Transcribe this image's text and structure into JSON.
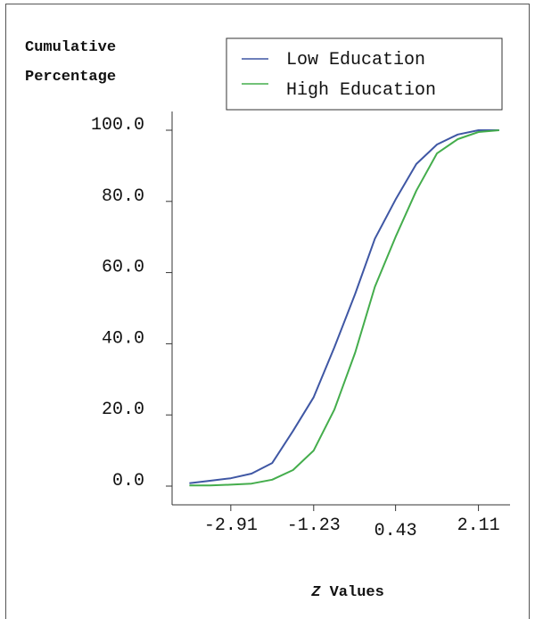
{
  "chart_data": {
    "type": "line",
    "ylabel_lines": [
      "Cumulative",
      "Percentage"
    ],
    "xlabel_prefix": "Z",
    "xlabel_suffix": " Values",
    "y_ticks": [
      "100.0",
      "80.0",
      "60.0",
      "40.0",
      "20.0",
      "0.0"
    ],
    "x_ticks": [
      "-2.91",
      "-1.23",
      "0.43",
      "2.11"
    ],
    "x_tick_values": [
      -2.91,
      -1.23,
      0.43,
      2.11
    ],
    "y_tick_values": [
      100,
      80,
      60,
      40,
      20,
      0
    ],
    "xlim": [
      -4.1,
      2.75
    ],
    "ylim": [
      0,
      100
    ],
    "legend_position": "top-right",
    "series": [
      {
        "name": "Low Education",
        "color": "#3f57a4",
        "x": [
          -3.75,
          -3.33,
          -2.91,
          -2.49,
          -2.07,
          -1.65,
          -1.23,
          -0.81,
          -0.39,
          0.01,
          0.43,
          0.85,
          1.27,
          1.69,
          2.11,
          2.53
        ],
        "y": [
          0.8,
          1.5,
          2.2,
          3.5,
          6.5,
          15.5,
          25.0,
          39.0,
          54.0,
          69.5,
          80.5,
          90.5,
          96.0,
          98.8,
          100.0,
          100.0
        ]
      },
      {
        "name": "High Education",
        "color": "#44ad4c",
        "x": [
          -3.75,
          -3.33,
          -2.91,
          -2.49,
          -2.07,
          -1.65,
          -1.23,
          -0.81,
          -0.39,
          0.01,
          0.43,
          0.85,
          1.27,
          1.69,
          2.11,
          2.53
        ],
        "y": [
          0.2,
          0.2,
          0.4,
          0.7,
          1.8,
          4.5,
          10.0,
          21.5,
          37.5,
          56.0,
          70.0,
          83.0,
          93.5,
          97.5,
          99.5,
          100.0
        ]
      }
    ]
  }
}
